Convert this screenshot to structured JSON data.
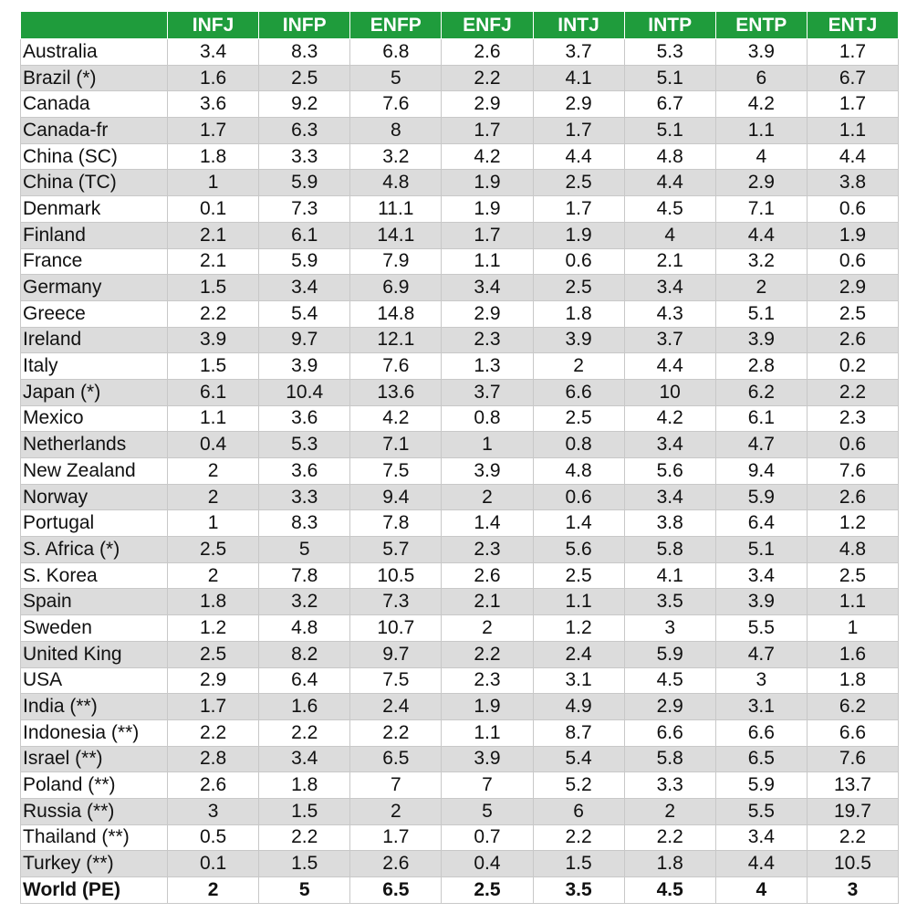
{
  "table": {
    "headers": [
      "INFJ",
      "INFP",
      "ENFP",
      "ENFJ",
      "INTJ",
      "INTP",
      "ENTP",
      "ENTJ"
    ],
    "rows": [
      [
        "Australia",
        3.4,
        8.3,
        6.8,
        2.6,
        3.7,
        5.3,
        3.9,
        1.7
      ],
      [
        "Brazil (*)",
        1.6,
        2.5,
        5,
        2.2,
        4.1,
        5.1,
        6,
        6.7
      ],
      [
        "Canada",
        3.6,
        9.2,
        7.6,
        2.9,
        2.9,
        6.7,
        4.2,
        1.7
      ],
      [
        "Canada-fr",
        1.7,
        6.3,
        8,
        1.7,
        1.7,
        5.1,
        1.1,
        1.1
      ],
      [
        "China (SC)",
        1.8,
        3.3,
        3.2,
        4.2,
        4.4,
        4.8,
        4,
        4.4
      ],
      [
        "China (TC)",
        1,
        5.9,
        4.8,
        1.9,
        2.5,
        4.4,
        2.9,
        3.8
      ],
      [
        "Denmark",
        0.1,
        7.3,
        11.1,
        1.9,
        1.7,
        4.5,
        7.1,
        0.6
      ],
      [
        "Finland",
        2.1,
        6.1,
        14.1,
        1.7,
        1.9,
        4,
        4.4,
        1.9
      ],
      [
        "France",
        2.1,
        5.9,
        7.9,
        1.1,
        0.6,
        2.1,
        3.2,
        0.6
      ],
      [
        "Germany",
        1.5,
        3.4,
        6.9,
        3.4,
        2.5,
        3.4,
        2,
        2.9
      ],
      [
        "Greece",
        2.2,
        5.4,
        14.8,
        2.9,
        1.8,
        4.3,
        5.1,
        2.5
      ],
      [
        "Ireland",
        3.9,
        9.7,
        12.1,
        2.3,
        3.9,
        3.7,
        3.9,
        2.6
      ],
      [
        "Italy",
        1.5,
        3.9,
        7.6,
        1.3,
        2,
        4.4,
        2.8,
        0.2
      ],
      [
        "Japan (*)",
        6.1,
        10.4,
        13.6,
        3.7,
        6.6,
        10,
        6.2,
        2.2
      ],
      [
        "Mexico",
        1.1,
        3.6,
        4.2,
        0.8,
        2.5,
        4.2,
        6.1,
        2.3
      ],
      [
        "Netherlands",
        0.4,
        5.3,
        7.1,
        1,
        0.8,
        3.4,
        4.7,
        0.6
      ],
      [
        "New Zealand",
        2,
        3.6,
        7.5,
        3.9,
        4.8,
        5.6,
        9.4,
        7.6
      ],
      [
        "Norway",
        2,
        3.3,
        9.4,
        2,
        0.6,
        3.4,
        5.9,
        2.6
      ],
      [
        "Portugal",
        1,
        8.3,
        7.8,
        1.4,
        1.4,
        3.8,
        6.4,
        1.2
      ],
      [
        "S. Africa (*)",
        2.5,
        5,
        5.7,
        2.3,
        5.6,
        5.8,
        5.1,
        4.8
      ],
      [
        "S. Korea",
        2,
        7.8,
        10.5,
        2.6,
        2.5,
        4.1,
        3.4,
        2.5
      ],
      [
        "Spain",
        1.8,
        3.2,
        7.3,
        2.1,
        1.1,
        3.5,
        3.9,
        1.1
      ],
      [
        "Sweden",
        1.2,
        4.8,
        10.7,
        2,
        1.2,
        3,
        5.5,
        1
      ],
      [
        "United King",
        2.5,
        8.2,
        9.7,
        2.2,
        2.4,
        5.9,
        4.7,
        1.6
      ],
      [
        "USA",
        2.9,
        6.4,
        7.5,
        2.3,
        3.1,
        4.5,
        3,
        1.8
      ],
      [
        "India (**)",
        1.7,
        1.6,
        2.4,
        1.9,
        4.9,
        2.9,
        3.1,
        6.2
      ],
      [
        "Indonesia (**)",
        2.2,
        2.2,
        2.2,
        1.1,
        8.7,
        6.6,
        6.6,
        6.6
      ],
      [
        "Israel (**)",
        2.8,
        3.4,
        6.5,
        3.9,
        5.4,
        5.8,
        6.5,
        7.6
      ],
      [
        "Poland (**)",
        2.6,
        1.8,
        7,
        7,
        5.2,
        3.3,
        5.9,
        13.7
      ],
      [
        "Russia (**)",
        3,
        1.5,
        2,
        5,
        6,
        2,
        5.5,
        19.7
      ],
      [
        "Thailand (**)",
        0.5,
        2.2,
        1.7,
        0.7,
        2.2,
        2.2,
        3.4,
        2.2
      ],
      [
        "Turkey (**)",
        0.1,
        1.5,
        2.6,
        0.4,
        1.5,
        1.8,
        4.4,
        10.5
      ]
    ],
    "total": [
      "World (PE)",
      2,
      5,
      6.5,
      2.5,
      3.5,
      4.5,
      4,
      3
    ]
  }
}
